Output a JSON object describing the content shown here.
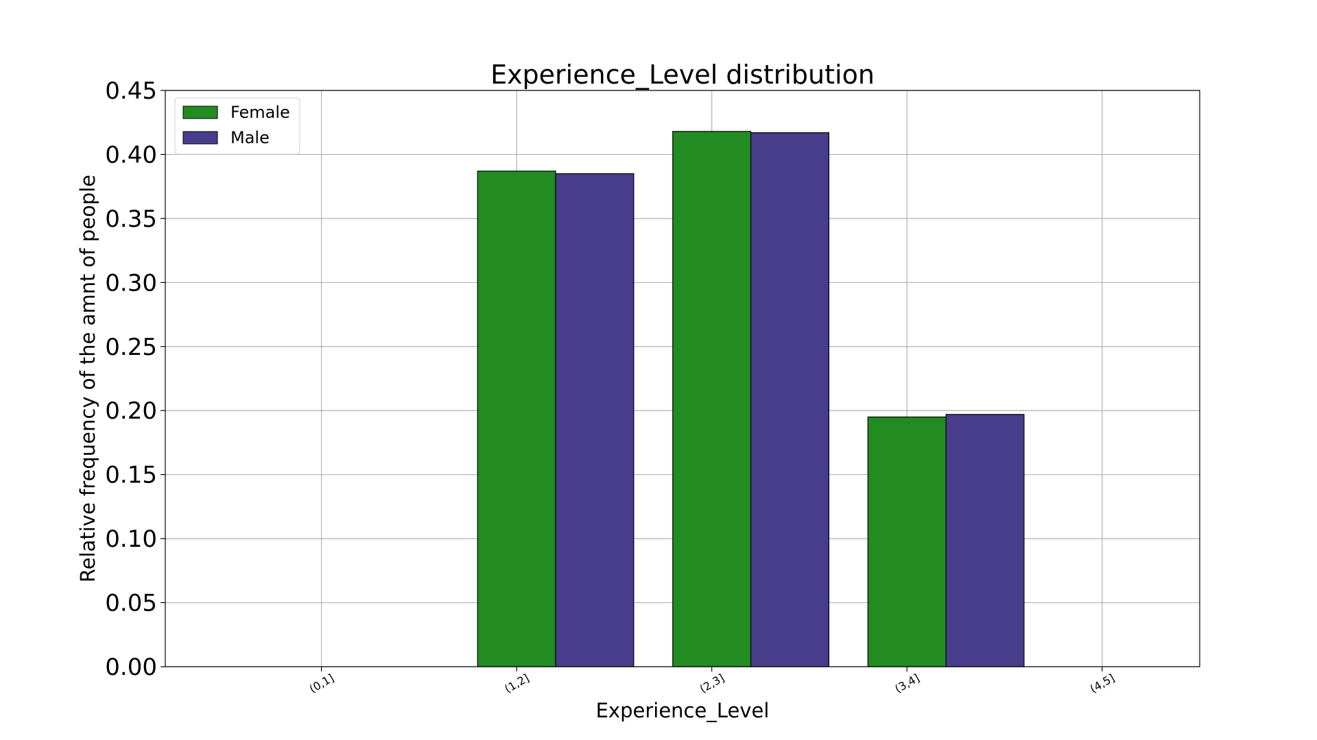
{
  "chart_data": {
    "type": "bar",
    "title": "Experience_Level distribution",
    "xlabel": "Experience_Level",
    "ylabel": "Relative frequency of the amnt of people",
    "categories": [
      "(0,1]",
      "(1,2]",
      "(2,3]",
      "(3,4]",
      "(4,5]"
    ],
    "series": [
      {
        "name": "Female",
        "color": "#228b22",
        "values": [
          0.0,
          0.387,
          0.418,
          0.195,
          0.0
        ]
      },
      {
        "name": "Male",
        "color": "#483d8b",
        "values": [
          0.0,
          0.385,
          0.417,
          0.197,
          0.0
        ]
      }
    ],
    "ylim": [
      0,
      0.45
    ],
    "yticks": [
      "0.00",
      "0.05",
      "0.10",
      "0.15",
      "0.20",
      "0.25",
      "0.30",
      "0.35",
      "0.40",
      "0.45"
    ],
    "grid": true,
    "legend_position": "top-left"
  }
}
